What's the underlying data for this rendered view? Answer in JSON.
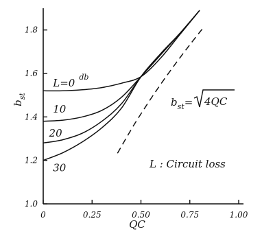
{
  "chart_data": {
    "type": "line",
    "title": "",
    "xlabel": "QC",
    "ylabel_base": "b",
    "ylabel_sub": "st",
    "xlim": [
      0,
      1.0
    ],
    "ylim": [
      1.0,
      1.9
    ],
    "x_ticks": [
      0,
      0.25,
      0.5,
      0.75,
      1.0
    ],
    "x_tick_labels": [
      "0",
      "0.25",
      "0.50",
      "0.75",
      "1.00"
    ],
    "y_ticks": [
      1.0,
      1.2,
      1.4,
      1.6,
      1.8
    ],
    "y_tick_labels": [
      "1.0",
      "1.2",
      "1.4",
      "1.6",
      "1.8"
    ],
    "series": [
      {
        "name": "L=0 db",
        "label": "L=0",
        "label_sup": "db",
        "label_pos": [
          0.05,
          1.54
        ],
        "style": "solid",
        "x": [
          0,
          0.1,
          0.2,
          0.3,
          0.4,
          0.5,
          0.6,
          0.7,
          0.8
        ],
        "y": [
          1.52,
          1.52,
          1.525,
          1.535,
          1.555,
          1.585,
          1.67,
          1.78,
          1.89
        ]
      },
      {
        "name": "10",
        "label": "10",
        "label_pos": [
          0.05,
          1.42
        ],
        "style": "solid",
        "x": [
          0,
          0.1,
          0.2,
          0.3,
          0.4,
          0.5,
          0.6,
          0.7,
          0.8
        ],
        "y": [
          1.38,
          1.385,
          1.4,
          1.43,
          1.49,
          1.585,
          1.685,
          1.785,
          1.89
        ]
      },
      {
        "name": "20",
        "label": "20",
        "label_pos": [
          0.03,
          1.31
        ],
        "style": "solid",
        "x": [
          0,
          0.1,
          0.2,
          0.3,
          0.4,
          0.5,
          0.6,
          0.7,
          0.8
        ],
        "y": [
          1.28,
          1.295,
          1.325,
          1.38,
          1.46,
          1.585,
          1.69,
          1.785,
          1.89
        ]
      },
      {
        "name": "30",
        "label": "30",
        "label_pos": [
          0.05,
          1.15
        ],
        "style": "solid",
        "x": [
          0,
          0.1,
          0.2,
          0.3,
          0.4,
          0.5,
          0.6,
          0.7,
          0.8
        ],
        "y": [
          1.2,
          1.235,
          1.285,
          1.35,
          1.44,
          1.585,
          1.69,
          1.785,
          1.89
        ]
      },
      {
        "name": "bst=sqrt(4QC)",
        "style": "dashed",
        "x": [
          0.38,
          0.45,
          0.5,
          0.55,
          0.6,
          0.65,
          0.7,
          0.75,
          0.8,
          0.82
        ],
        "y": [
          1.233,
          1.342,
          1.414,
          1.483,
          1.549,
          1.612,
          1.673,
          1.732,
          1.789,
          1.811
        ]
      }
    ],
    "annotations": {
      "formula_base": "b",
      "formula_sub": "st",
      "formula_eq": "=",
      "formula_root_arg": "4QC",
      "legend_note": "L : Circuit loss"
    },
    "grid": false
  }
}
